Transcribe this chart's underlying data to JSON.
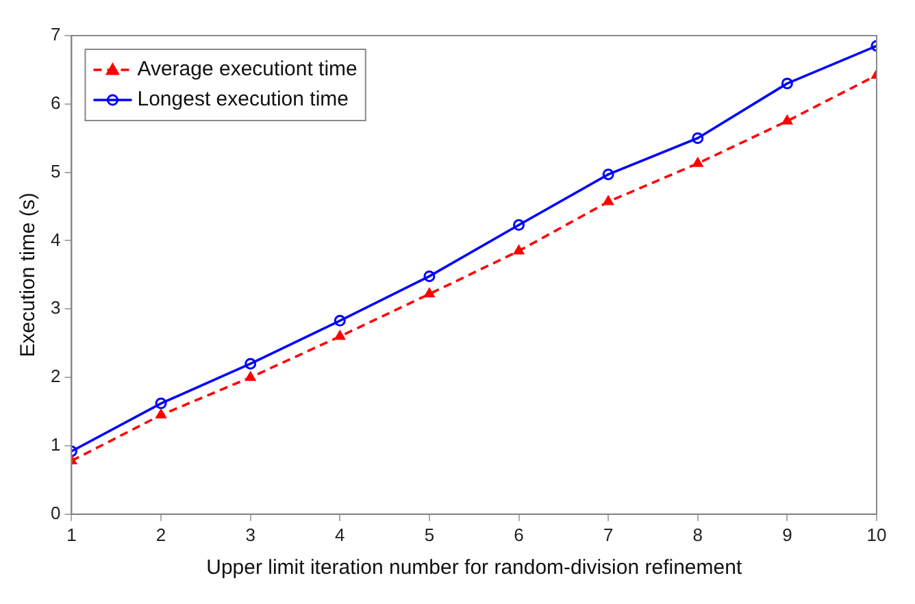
{
  "chart_data": {
    "type": "line",
    "xlabel": "Upper limit iteration number for random-division refinement",
    "ylabel": "Execution time (s)",
    "x": [
      1,
      2,
      3,
      4,
      5,
      6,
      7,
      8,
      9,
      10
    ],
    "series": [
      {
        "name": "Average executiont time",
        "color": "#ff0000",
        "marker": "triangle",
        "line_style": "dashed",
        "values": [
          0.78,
          1.45,
          2.0,
          2.6,
          3.22,
          3.85,
          4.57,
          5.13,
          5.75,
          6.42
        ]
      },
      {
        "name": "Longest execution time",
        "color": "#0000ff",
        "marker": "circle",
        "line_style": "solid",
        "values": [
          0.92,
          1.62,
          2.2,
          2.83,
          3.48,
          4.23,
          4.97,
          5.5,
          6.3,
          6.85
        ]
      }
    ],
    "xlim": [
      1,
      10
    ],
    "xticks": [
      1,
      2,
      3,
      4,
      5,
      6,
      7,
      8,
      9,
      10
    ],
    "ylim": [
      0,
      7
    ],
    "yticks": [
      0,
      1,
      2,
      3,
      4,
      5,
      6,
      7
    ],
    "grid": false,
    "legend": "top left"
  }
}
